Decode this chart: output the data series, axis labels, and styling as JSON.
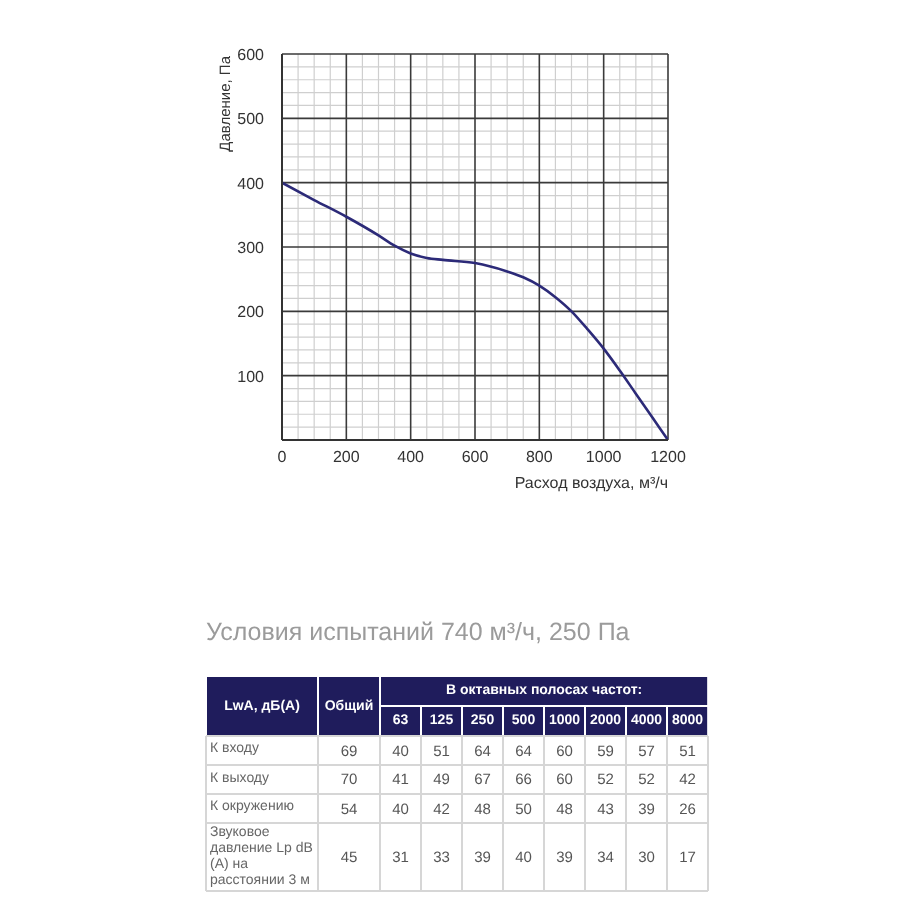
{
  "chart_data": [
    {
      "type": "line",
      "xlabel": "Расход воздуха, м³/ч",
      "ylabel": "Давление, Па",
      "x": [
        0,
        100,
        200,
        300,
        350,
        400,
        450,
        500,
        600,
        700,
        750,
        800,
        850,
        900,
        950,
        1000,
        1050,
        1100,
        1150,
        1200
      ],
      "values": [
        400,
        373,
        347,
        318,
        302,
        290,
        283,
        280,
        275,
        262,
        253,
        240,
        222,
        200,
        172,
        142,
        108,
        72,
        36,
        0
      ],
      "color": "#2c2a78",
      "xlim": [
        0,
        1200
      ],
      "ylim": [
        0,
        600
      ],
      "xticks": [
        0,
        {
          "value": 50,
          "label": null
        },
        {
          "value": 100,
          "label": null
        },
        {
          "value": 150,
          "label": null
        },
        200,
        {
          "value": 250,
          "label": null
        },
        {
          "value": 300,
          "label": null
        },
        {
          "value": 350,
          "label": null
        },
        400,
        {
          "value": 450,
          "label": null
        },
        {
          "value": 500,
          "label": null
        },
        {
          "value": 550,
          "label": null
        },
        600,
        {
          "value": 650,
          "label": null
        },
        {
          "value": 700,
          "label": null
        },
        {
          "value": 750,
          "label": null
        },
        800,
        {
          "value": 850,
          "label": null
        },
        {
          "value": 900,
          "label": null
        },
        {
          "value": 950,
          "label": null
        },
        1000,
        {
          "value": 1050,
          "label": null
        },
        {
          "value": 1100,
          "label": null
        },
        {
          "value": 1150,
          "label": null
        },
        1200
      ],
      "yticks": [
        {
          "value": 0,
          "label": null
        },
        {
          "value": 20,
          "label": null
        },
        {
          "value": 40,
          "label": null
        },
        {
          "value": 60,
          "label": null
        },
        {
          "value": 80,
          "label": null
        },
        100,
        {
          "value": 120,
          "label": null
        },
        {
          "value": 140,
          "label": null
        },
        {
          "value": 160,
          "label": null
        },
        {
          "value": 180,
          "label": null
        },
        200,
        {
          "value": 220,
          "label": null
        },
        {
          "value": 240,
          "label": null
        },
        {
          "value": 260,
          "label": null
        },
        {
          "value": 280,
          "label": null
        },
        300,
        {
          "value": 320,
          "label": null
        },
        {
          "value": 340,
          "label": null
        },
        {
          "value": 360,
          "label": null
        },
        {
          "value": 380,
          "label": null
        },
        400,
        {
          "value": 420,
          "label": null
        },
        {
          "value": 440,
          "label": null
        },
        {
          "value": 460,
          "label": null
        },
        {
          "value": 480,
          "label": null
        },
        500,
        {
          "value": 520,
          "label": null
        },
        {
          "value": 540,
          "label": null
        },
        {
          "value": 560,
          "label": null
        },
        {
          "value": 580,
          "label": null
        },
        600
      ],
      "grid": true
    },
    {
      "type": "heatmap",
      "title": "Условия испытаний 740 м³/ч, 250 Па",
      "ylabel": "LwA, дБ(A)",
      "xlabel": "В октавных полосах частот:",
      "categories": [
        "Общий",
        "63",
        "125",
        "250",
        "500",
        "1000",
        "2000",
        "4000",
        "8000"
      ],
      "y_categories": [
        "К входу",
        "К выходу",
        "К окружению",
        "Звуковое давление Lp dB (A) на расстоянии 3 м"
      ],
      "cells": [
        [
          69,
          40,
          51,
          64,
          64,
          60,
          59,
          57,
          51
        ],
        [
          70,
          41,
          49,
          67,
          66,
          60,
          52,
          52,
          42
        ],
        [
          54,
          40,
          42,
          48,
          50,
          48,
          43,
          39,
          26
        ],
        [
          45,
          31,
          33,
          39,
          40,
          39,
          34,
          30,
          17
        ]
      ],
      "data_labels": true
    }
  ]
}
